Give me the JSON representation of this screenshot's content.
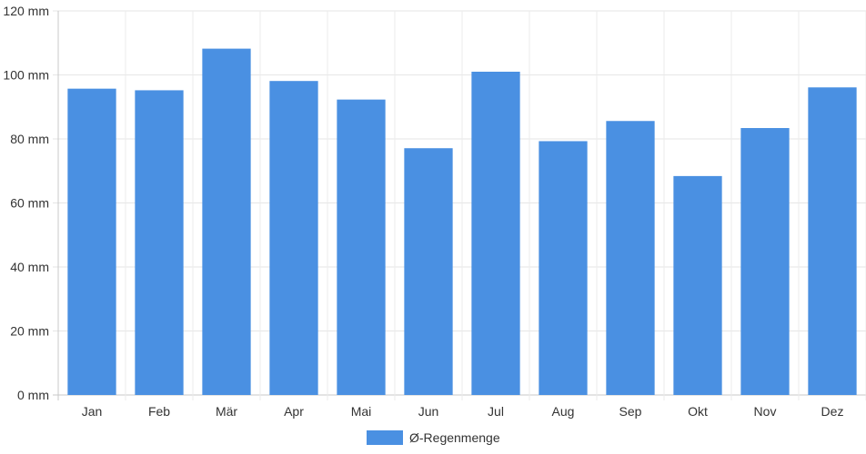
{
  "chart_data": {
    "type": "bar",
    "categories": [
      "Jan",
      "Feb",
      "Mär",
      "Apr",
      "Mai",
      "Jun",
      "Jul",
      "Aug",
      "Sep",
      "Okt",
      "Nov",
      "Dez"
    ],
    "series": [
      {
        "name": "Ø-Regenmenge",
        "values": [
          95.7,
          95.2,
          108.2,
          98.1,
          92.3,
          77.1,
          101.0,
          79.3,
          85.6,
          68.4,
          83.4,
          96.1
        ],
        "color": "#4a90e2"
      }
    ],
    "y_ticks": [
      "0 mm",
      "20 mm",
      "40 mm",
      "60 mm",
      "80 mm",
      "100 mm",
      "120 mm"
    ],
    "ylim": [
      0,
      120
    ],
    "grid": true,
    "legend_position": "bottom-center"
  }
}
